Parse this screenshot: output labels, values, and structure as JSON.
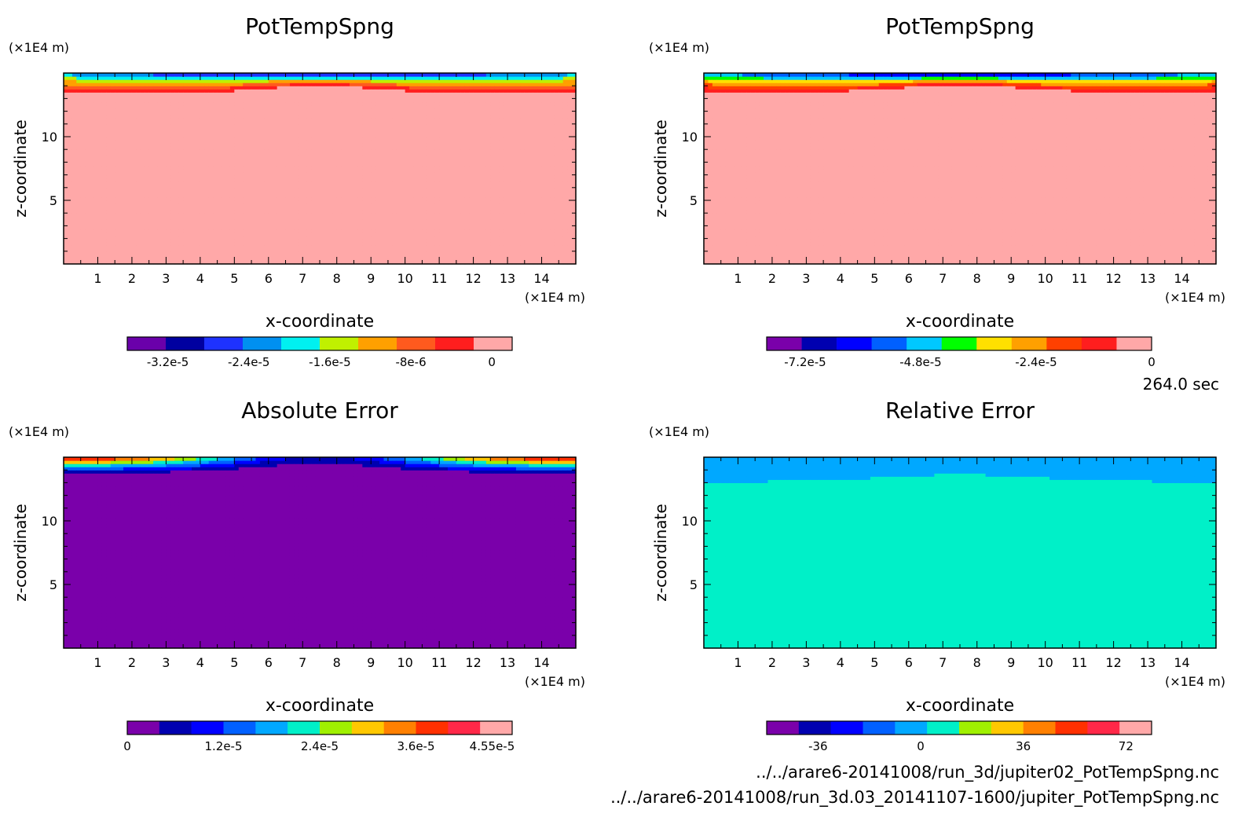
{
  "chart_data": [
    {
      "type": "heatmap",
      "title": "PotTempSpng",
      "xlabel": "x-coordinate",
      "ylabel": "z-coordinate",
      "x_unit": "(×1E4 m)",
      "y_unit": "(×1E4 m)",
      "xlim": [
        0,
        15
      ],
      "ylim": [
        0,
        15
      ],
      "x_ticks": [
        "1",
        "2",
        "3",
        "4",
        "5",
        "6",
        "7",
        "8",
        "9",
        "10",
        "11",
        "12",
        "13",
        "14"
      ],
      "y_ticks": [
        "5",
        "10"
      ],
      "x_tick_values": [
        1,
        2,
        3,
        4,
        5,
        6,
        7,
        8,
        9,
        10,
        11,
        12,
        13,
        14
      ],
      "y_tick_values": [
        5,
        10
      ],
      "field": "sponge",
      "colorbar": {
        "colors": [
          "#6a00aa",
          "#0000a0",
          "#1e32ff",
          "#0090f0",
          "#00f0f0",
          "#c0f000",
          "#ffa000",
          "#ff5a1e",
          "#ff1e1e",
          "#ffa8a8"
        ],
        "tick_labels": [
          "-3.2e-5",
          "-2.4e-5",
          "-1.6e-5",
          "-8e-6",
          "0"
        ],
        "range": [
          -3.6e-05,
          2e-06
        ],
        "tick_values": [
          -3.2e-05,
          -2.4e-05,
          -1.6e-05,
          -8e-06,
          0
        ]
      }
    },
    {
      "type": "heatmap",
      "title": "PotTempSpng",
      "xlabel": "x-coordinate",
      "ylabel": "z-coordinate",
      "x_unit": "(×1E4 m)",
      "y_unit": "(×1E4 m)",
      "xlim": [
        0,
        15
      ],
      "ylim": [
        0,
        15
      ],
      "x_ticks": [
        "1",
        "2",
        "3",
        "4",
        "5",
        "6",
        "7",
        "8",
        "9",
        "10",
        "11",
        "12",
        "13",
        "14"
      ],
      "y_ticks": [
        "5",
        "10"
      ],
      "x_tick_values": [
        1,
        2,
        3,
        4,
        5,
        6,
        7,
        8,
        9,
        10,
        11,
        12,
        13,
        14
      ],
      "y_tick_values": [
        5,
        10
      ],
      "field": "sponge",
      "colorbar": {
        "colors": [
          "#7a00aa",
          "#0000b0",
          "#0000ff",
          "#0060ff",
          "#00c8ff",
          "#00ff00",
          "#ffe000",
          "#ffa000",
          "#ff4000",
          "#ff1e1e",
          "#ffa8a8"
        ],
        "tick_labels": [
          "-7.2e-5",
          "-4.8e-5",
          "-2.4e-5",
          "0"
        ],
        "range": [
          -8e-05,
          0
        ],
        "tick_values": [
          -7.2e-05,
          -4.8e-05,
          -2.4e-05,
          0
        ]
      }
    },
    {
      "type": "heatmap",
      "title": "Absolute Error",
      "xlabel": "x-coordinate",
      "ylabel": "z-coordinate",
      "x_unit": "(×1E4 m)",
      "y_unit": "(×1E4 m)",
      "xlim": [
        0,
        15
      ],
      "ylim": [
        0,
        15
      ],
      "x_ticks": [
        "1",
        "2",
        "3",
        "4",
        "5",
        "6",
        "7",
        "8",
        "9",
        "10",
        "11",
        "12",
        "13",
        "14"
      ],
      "y_ticks": [
        "5",
        "10"
      ],
      "x_tick_values": [
        1,
        2,
        3,
        4,
        5,
        6,
        7,
        8,
        9,
        10,
        11,
        12,
        13,
        14
      ],
      "y_tick_values": [
        5,
        10
      ],
      "field": "abs_error",
      "colorbar": {
        "colors": [
          "#7a00aa",
          "#0000b0",
          "#0000ff",
          "#0060ff",
          "#00a8ff",
          "#00f0c8",
          "#a0f000",
          "#ffc800",
          "#ff8000",
          "#ff3000",
          "#ff2848",
          "#ffa8a8"
        ],
        "tick_labels": [
          "0",
          "1.2e-5",
          "2.4e-5",
          "3.6e-5",
          "4.55e-5"
        ],
        "range": [
          0,
          4.8e-05
        ],
        "tick_values": [
          0,
          1.2e-05,
          2.4e-05,
          3.6e-05,
          4.55e-05
        ]
      }
    },
    {
      "type": "heatmap",
      "title": "Relative Error",
      "xlabel": "x-coordinate",
      "ylabel": "z-coordinate",
      "x_unit": "(×1E4 m)",
      "y_unit": "(×1E4 m)",
      "xlim": [
        0,
        15
      ],
      "ylim": [
        0,
        15
      ],
      "x_ticks": [
        "1",
        "2",
        "3",
        "4",
        "5",
        "6",
        "7",
        "8",
        "9",
        "10",
        "11",
        "12",
        "13",
        "14"
      ],
      "y_ticks": [
        "5",
        "10"
      ],
      "x_tick_values": [
        1,
        2,
        3,
        4,
        5,
        6,
        7,
        8,
        9,
        10,
        11,
        12,
        13,
        14
      ],
      "y_tick_values": [
        5,
        10
      ],
      "field": "rel_error",
      "colorbar": {
        "colors": [
          "#7a00aa",
          "#0000b0",
          "#0000ff",
          "#0060ff",
          "#00a8ff",
          "#00f0c8",
          "#a0f000",
          "#ffc800",
          "#ff8000",
          "#ff3000",
          "#ff2848",
          "#ffa8a8"
        ],
        "tick_labels": [
          "-36",
          "0",
          "36",
          "72"
        ],
        "range": [
          -54,
          81
        ],
        "tick_values": [
          -36,
          0,
          36,
          72
        ]
      }
    }
  ],
  "time_label": "264.0 sec",
  "files": [
    "../../arare6-20141008/run_3d/jupiter02_PotTempSpng.nc",
    "../../arare6-20141008/run_3d.03_20141107-1600/jupiter_PotTempSpng.nc"
  ]
}
